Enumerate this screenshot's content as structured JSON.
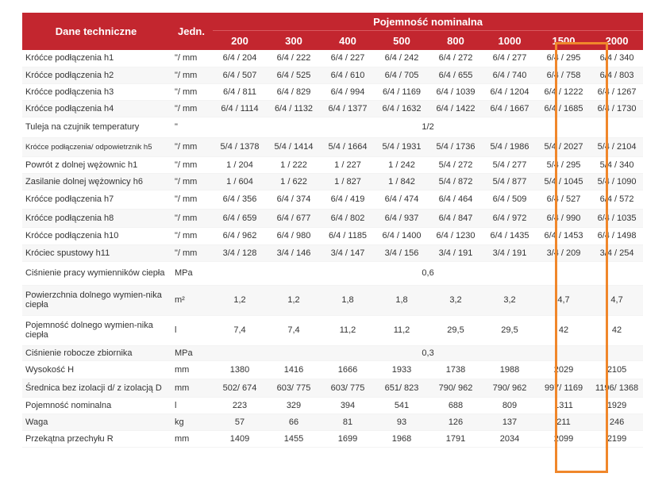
{
  "header": {
    "technical_data": "Dane techniczne",
    "unit": "Jedn.",
    "nominal_capacity": "Pojemność nominalna",
    "capacities": [
      "200",
      "300",
      "400",
      "500",
      "800",
      "1000",
      "1500",
      "2000"
    ]
  },
  "highlight_column": "1500",
  "accent_color": "#c3262f",
  "highlight_color": "#f0872b",
  "rows": [
    {
      "name": "Króćce podłączenia h1",
      "unit": "\"/ mm",
      "values": [
        "6/4 / 204",
        "6/4 / 222",
        "6/4 / 227",
        "6/4 / 242",
        "6/4 / 272",
        "6/4 / 277",
        "6/4 / 295",
        "6/4 / 340"
      ]
    },
    {
      "name": "Króćce podłączenia h2",
      "unit": "\"/ mm",
      "values": [
        "6/4 / 507",
        "6/4 / 525",
        "6/4 / 610",
        "6/4 / 705",
        "6/4 / 655",
        "6/4 / 740",
        "6/4 / 758",
        "6/4 / 803"
      ]
    },
    {
      "name": "Króćce podłączenia h3",
      "unit": "\"/ mm",
      "values": [
        "6/4 / 811",
        "6/4 / 829",
        "6/4 / 994",
        "6/4 / 1169",
        "6/4 / 1039",
        "6/4 / 1204",
        "6/4 / 1222",
        "6/4 / 1267"
      ]
    },
    {
      "name": "Króćce podłączenia h4",
      "unit": "\"/ mm",
      "values": [
        "6/4 / 1114",
        "6/4 / 1132",
        "6/4 / 1377",
        "6/4 / 1632",
        "6/4 / 1422",
        "6/4 / 1667",
        "6/4 / 1685",
        "6/4 / 1730"
      ]
    },
    {
      "name": "Tuleja na czujnik temperatury",
      "unit": "\"",
      "merged": "1/2"
    },
    {
      "name": "Króćce podłączenia/ odpowietrznik h5",
      "unit": "\"/ mm",
      "small": true,
      "values": [
        "5/4 / 1378",
        "5/4 / 1414",
        "5/4 / 1664",
        "5/4 / 1931",
        "5/4 / 1736",
        "5/4 / 1986",
        "5/4 / 2027",
        "5/4 / 2104"
      ]
    },
    {
      "name": "Powrót z dolnej wężownic h1",
      "unit": "\"/ mm",
      "values": [
        "1 / 204",
        "1 / 222",
        "1 / 227",
        "1 / 242",
        "5/4 / 272",
        "5/4 / 277",
        "5/4 / 295",
        "5/4 / 340"
      ]
    },
    {
      "name": "Zasilanie dolnej wężownicy h6",
      "unit": "\"/ mm",
      "values": [
        "1 / 604",
        "1 / 622",
        "1 / 827",
        "1 / 842",
        "5/4 / 872",
        "5/4 / 877",
        "5/4 / 1045",
        "5/4 / 1090"
      ]
    },
    {
      "name": "Króćce podłączenia h7",
      "unit": "\"/ mm",
      "values": [
        "6/4 / 356",
        "6/4 / 374",
        "6/4 / 419",
        "6/4 / 474",
        "6/4 / 464",
        "6/4 / 509",
        "6/4 / 527",
        "6/4 / 572"
      ]
    },
    {
      "name": "Króćce podłączenia h8",
      "unit": "\"/ mm",
      "values": [
        "6/4 / 659",
        "6/4 / 677",
        "6/4 / 802",
        "6/4 / 937",
        "6/4 / 847",
        "6/4 / 972",
        "6/4 / 990",
        "6/4 / 1035"
      ]
    },
    {
      "name": "Króćce podłączenia h10",
      "unit": "\"/ mm",
      "values": [
        "6/4 / 962",
        "6/4 / 980",
        "6/4 / 1185",
        "6/4 / 1400",
        "6/4 / 1230",
        "6/4 / 1435",
        "6/4 / 1453",
        "6/4 / 1498"
      ]
    },
    {
      "name": "Króciec spustowy h11",
      "unit": "\"/ mm",
      "values": [
        "3/4 / 128",
        "3/4 / 146",
        "3/4 / 147",
        "3/4 / 156",
        "3/4 / 191",
        "3/4 / 191",
        "3/4 / 209",
        "3/4 / 254"
      ]
    },
    {
      "name": "Ciśnienie pracy wymienników ciepła",
      "unit": "MPa",
      "merged": "0,6",
      "wrapped": true
    },
    {
      "name": "Powierzchnia  dolnego wymien-nika ciepła",
      "unit": "m²",
      "wrapped": true,
      "values": [
        "1,2",
        "1,2",
        "1,8",
        "1,8",
        "3,2",
        "3,2",
        "4,7",
        "4,7"
      ]
    },
    {
      "name": "Pojemność dolnego wymien-nika ciepła",
      "unit": "l",
      "wrapped": true,
      "values": [
        "7,4",
        "7,4",
        "11,2",
        "11,2",
        "29,5",
        "29,5",
        "42",
        "42"
      ]
    },
    {
      "name": "Ciśnienie robocze zbiornika",
      "unit": "MPa",
      "merged": "0,3"
    },
    {
      "name": "Wysokość H",
      "unit": "mm",
      "values": [
        "1380",
        "1416",
        "1666",
        "1933",
        "1738",
        "1988",
        "2029",
        "2105"
      ]
    },
    {
      "name": "Średnica bez izolacji d/ z izolacją D",
      "unit": "mm",
      "values": [
        "502/ 674",
        "603/ 775",
        "603/ 775",
        "651/ 823",
        "790/ 962",
        "790/ 962",
        "997/ 1169",
        "1196/ 1368"
      ]
    },
    {
      "name": "Pojemność nominalna",
      "unit": "l",
      "values": [
        "223",
        "329",
        "394",
        "541",
        "688",
        "809",
        "1311",
        "1929"
      ]
    },
    {
      "name": "Waga",
      "unit": "kg",
      "values": [
        "57",
        "66",
        "81",
        "93",
        "126",
        "137",
        "211",
        "246"
      ]
    },
    {
      "name": "Przekątna przechyłu R",
      "unit": "mm",
      "values": [
        "1409",
        "1455",
        "1699",
        "1968",
        "1791",
        "2034",
        "2099",
        "2199"
      ]
    }
  ]
}
